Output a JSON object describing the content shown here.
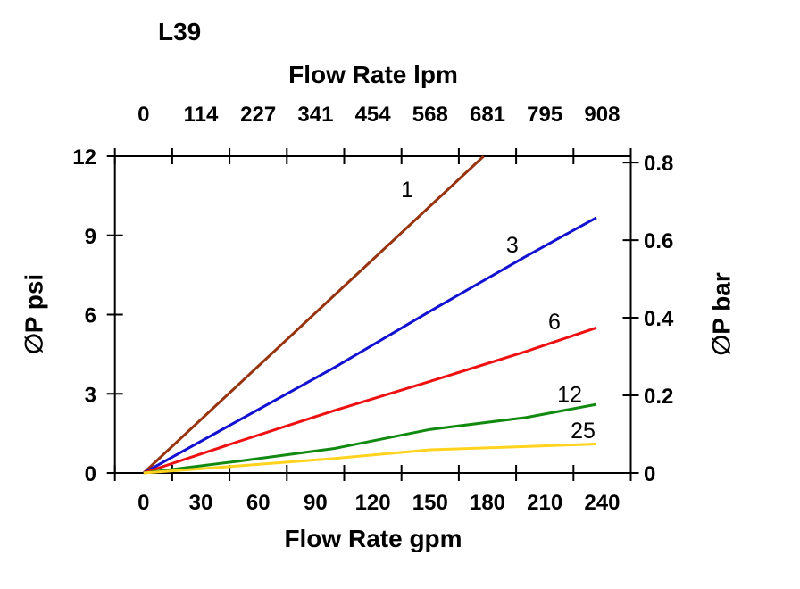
{
  "page": {
    "title": "L39"
  },
  "chart_data": {
    "type": "line",
    "title": "L39",
    "grid": false,
    "legend": "inline-curve-labels",
    "axes": {
      "top": {
        "label": "Flow Rate lpm",
        "tick_labels": [
          "0",
          "114",
          "227",
          "341",
          "454",
          "568",
          "681",
          "795",
          "908"
        ]
      },
      "bottom": {
        "label": "Flow Rate gpm",
        "tick_labels": [
          "0",
          "30",
          "60",
          "90",
          "120",
          "150",
          "180",
          "210",
          "240"
        ],
        "range": [
          0,
          240
        ]
      },
      "left": {
        "label": "∅P psi",
        "tick_labels": [
          "0",
          "3",
          "6",
          "9",
          "12"
        ],
        "tick_values": [
          0,
          3,
          6,
          9,
          12
        ],
        "range": [
          0,
          12
        ]
      },
      "right": {
        "label": "∅P bar",
        "tick_labels": [
          "0",
          "0.2",
          "0.4",
          "0.6",
          "0.8"
        ],
        "tick_values_bar": [
          0,
          0.2,
          0.4,
          0.6,
          0.8
        ],
        "psi_per_bar": 14.7
      }
    },
    "axis_color": "#000000",
    "series": [
      {
        "name": "1",
        "color": "#98330F",
        "points_gpm_psi": [
          [
            0,
            0
          ],
          [
            50,
            3.37
          ],
          [
            100,
            6.74
          ],
          [
            150,
            10.11
          ],
          [
            178,
            12
          ]
        ],
        "label_at_gpm_psi": [
          138,
          10.75
        ]
      },
      {
        "name": "3",
        "color": "#1212D0",
        "points_gpm_psi": [
          [
            0,
            0
          ],
          [
            50,
            2.0
          ],
          [
            100,
            4.0
          ],
          [
            150,
            6.13
          ],
          [
            200,
            8.2
          ],
          [
            237,
            9.67
          ]
        ],
        "label_at_gpm_psi": [
          193,
          8.65
        ]
      },
      {
        "name": "6",
        "color": "#EE1111",
        "points_gpm_psi": [
          [
            0,
            0
          ],
          [
            50,
            1.2
          ],
          [
            100,
            2.37
          ],
          [
            150,
            3.47
          ],
          [
            200,
            4.6
          ],
          [
            237,
            5.5
          ]
        ],
        "label_at_gpm_psi": [
          215,
          5.75
        ]
      },
      {
        "name": "12",
        "color": "#128A12",
        "points_gpm_psi": [
          [
            0,
            0
          ],
          [
            50,
            0.45
          ],
          [
            100,
            0.93
          ],
          [
            150,
            1.65
          ],
          [
            200,
            2.1
          ],
          [
            237,
            2.6
          ]
        ],
        "label_at_gpm_psi": [
          223,
          3.0
        ]
      },
      {
        "name": "25",
        "color": "#FFD31E",
        "points_gpm_psi": [
          [
            0,
            0
          ],
          [
            50,
            0.27
          ],
          [
            100,
            0.55
          ],
          [
            150,
            0.88
          ],
          [
            200,
            1.0
          ],
          [
            237,
            1.1
          ]
        ],
        "label_at_gpm_psi": [
          230,
          1.62
        ]
      }
    ]
  }
}
